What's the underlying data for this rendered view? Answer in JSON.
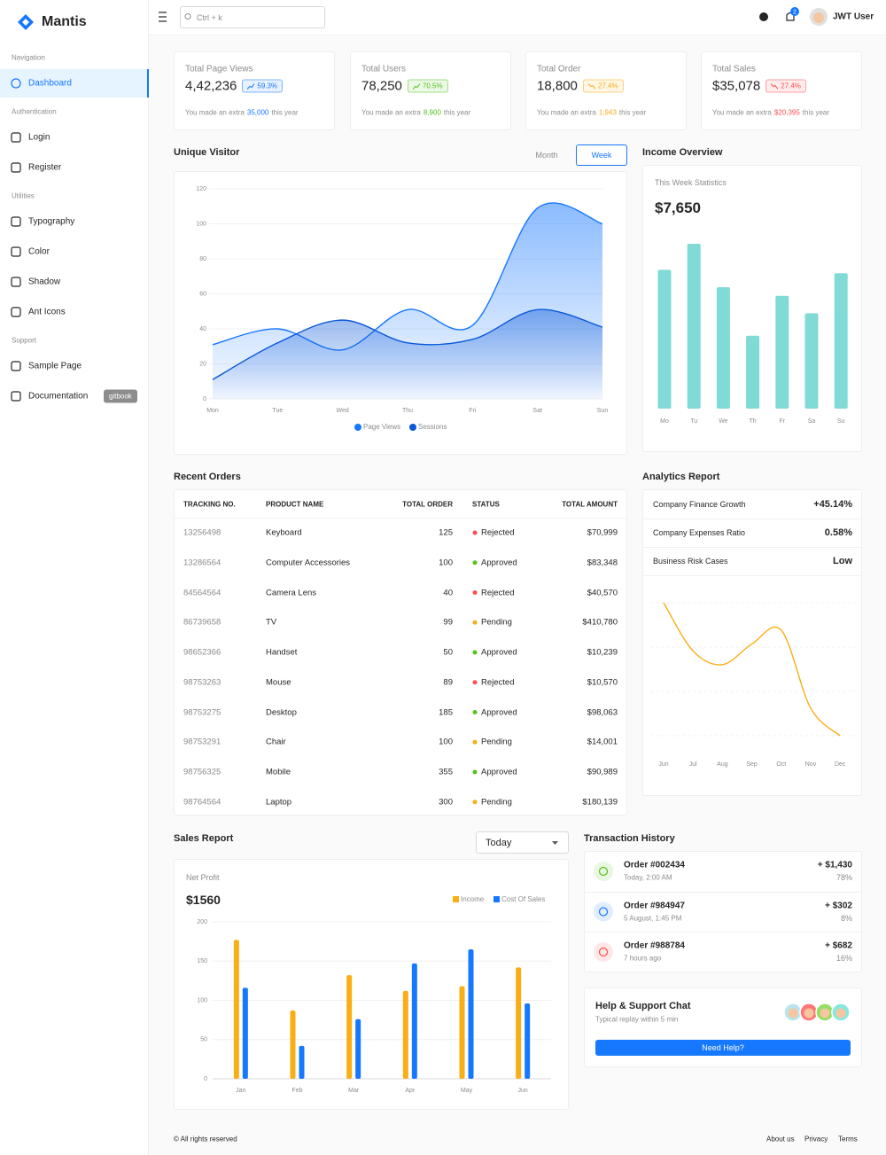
{
  "brand": "Mantis",
  "header": {
    "search": "Ctrl + k",
    "notifications": 2,
    "user": "JWT User"
  },
  "sidebar": {
    "groups": [
      {
        "title": "Navigation",
        "items": [
          "Dashboard"
        ]
      },
      {
        "title": "Authentication",
        "items": [
          "Login",
          "Register"
        ]
      },
      {
        "title": "Utilities",
        "items": [
          "Typography",
          "Color",
          "Shadow",
          "Ant Icons"
        ]
      },
      {
        "title": "Support",
        "items": [
          "Sample Page",
          "Documentation"
        ]
      }
    ],
    "badge": "gitbook"
  },
  "stats": [
    {
      "title": "Total Page Views",
      "value": "4,42,236",
      "percent": "59.3%",
      "trend": "up",
      "color": "#1677ff",
      "note": "You made an extra",
      "extra": "35,000",
      "note_end": "this year"
    },
    {
      "title": "Total Users",
      "value": "78,250",
      "percent": "70.5%",
      "trend": "up",
      "color": "#52c41a",
      "note": "You made an extra",
      "extra": "8,900",
      "note_end": "this year"
    },
    {
      "title": "Total Order",
      "value": "18,800",
      "percent": "27.4%",
      "trend": "down",
      "color": "#faad14",
      "note": "You made an extra",
      "extra": "1,943",
      "note_end": "this year"
    },
    {
      "title": "Total Sales",
      "value": "$35,078",
      "percent": "27.4%",
      "trend": "down",
      "color": "#ff4d4f",
      "note": "You made an extra",
      "extra": "$20,395",
      "note_end": "this year"
    }
  ],
  "visitor_toggle": [
    "Month",
    "Week"
  ],
  "income": {
    "title": "Income Overview",
    "subtitle": "This Week Statistics",
    "total": "$7,650"
  },
  "orders": {
    "title": "Recent Orders",
    "columns": [
      "TRACKING NO.",
      "PRODUCT NAME",
      "TOTAL ORDER",
      "STATUS",
      "TOTAL AMOUNT"
    ],
    "status_colors": {
      "Rejected": "#ff4d4f",
      "Approved": "#52c41a",
      "Pending": "#faad14"
    },
    "rows": [
      [
        "13256498",
        "Keyboard",
        125,
        "Rejected",
        "$70,999"
      ],
      [
        "13286564",
        "Computer Accessories",
        100,
        "Approved",
        "$83,348"
      ],
      [
        "84564564",
        "Camera Lens",
        40,
        "Rejected",
        "$40,570"
      ],
      [
        "86739658",
        "TV",
        99,
        "Pending",
        "$410,780"
      ],
      [
        "98652366",
        "Handset",
        50,
        "Approved",
        "$10,239"
      ],
      [
        "98753263",
        "Mouse",
        89,
        "Rejected",
        "$10,570"
      ],
      [
        "98753275",
        "Desktop",
        185,
        "Approved",
        "$98,063"
      ],
      [
        "98753291",
        "Chair",
        100,
        "Pending",
        "$14,001"
      ],
      [
        "98756325",
        "Mobile",
        355,
        "Approved",
        "$90,989"
      ],
      [
        "98764564",
        "Laptop",
        300,
        "Pending",
        "$180,139"
      ]
    ]
  },
  "analytics": {
    "title": "Analytics Report",
    "rows": [
      {
        "label": "Company Finance Growth",
        "value": "+45.14%"
      },
      {
        "label": "Company Expenses Ratio",
        "value": "0.58%"
      },
      {
        "label": "Business Risk Cases",
        "value": "Low"
      }
    ]
  },
  "sales": {
    "title": "Sales Report",
    "period": "Today",
    "label": "Net Profit",
    "total": "$1560"
  },
  "transactions": {
    "title": "Transaction History",
    "items": [
      {
        "order": "Order #002434",
        "time": "Today, 2:00 AM",
        "amount": "+ $1,430",
        "percent": "78%",
        "color": "#52c41a"
      },
      {
        "order": "Order #984947",
        "time": "5 August, 1:45 PM",
        "amount": "+ $302",
        "percent": "8%",
        "color": "#1677ff"
      },
      {
        "order": "Order #988784",
        "time": "7 hours ago",
        "amount": "+ $682",
        "percent": "16%",
        "color": "#ff4d4f"
      }
    ]
  },
  "help": {
    "title": "Help & Support Chat",
    "subtitle": "Typical replay within 5 min",
    "button": "Need Help?"
  },
  "footer": {
    "copyright": "© All rights reserved",
    "links": [
      "About us",
      "Privacy",
      "Terms"
    ]
  },
  "chart_data": [
    {
      "type": "area",
      "title": "Unique Visitor",
      "categories": [
        "Mon",
        "Tue",
        "Wed",
        "Thu",
        "Fri",
        "Sat",
        "Sun"
      ],
      "series": [
        {
          "name": "Page Views",
          "color": "#1677ff",
          "values": [
            31,
            40,
            28,
            51,
            42,
            109,
            100
          ]
        },
        {
          "name": "Sessions",
          "color": "#0958d9",
          "values": [
            11,
            32,
            45,
            32,
            34,
            51,
            41
          ]
        }
      ],
      "ylim": [
        0,
        120
      ],
      "yticks": [
        0,
        20,
        40,
        60,
        80,
        100,
        120
      ],
      "grid": true
    },
    {
      "type": "bar",
      "categories": [
        "Mo",
        "Tu",
        "We",
        "Th",
        "Fr",
        "Sa",
        "Su"
      ],
      "color": "#80dad6",
      "values": [
        80,
        95,
        70,
        42,
        65,
        55,
        78
      ]
    },
    {
      "type": "line",
      "categories": [
        "Jun",
        "Jul",
        "Aug",
        "Sep",
        "Oct",
        "Nov",
        "Dec"
      ],
      "color": "#faad14",
      "values": [
        79,
        58,
        52,
        61,
        67,
        33,
        21
      ],
      "grid": true
    },
    {
      "type": "bar",
      "categories": [
        "Jan",
        "Feb",
        "Mar",
        "Apr",
        "May",
        "Jun"
      ],
      "series": [
        {
          "name": "Income",
          "color": "#faad14",
          "values": [
            177,
            87,
            132,
            112,
            118,
            142
          ]
        },
        {
          "name": "Cost Of Sales",
          "color": "#1677ff",
          "values": [
            116,
            42,
            76,
            147,
            165,
            96
          ]
        }
      ],
      "ylim": [
        0,
        200
      ],
      "yticks": [
        0,
        50,
        100,
        150,
        200
      ],
      "grid": true
    }
  ]
}
